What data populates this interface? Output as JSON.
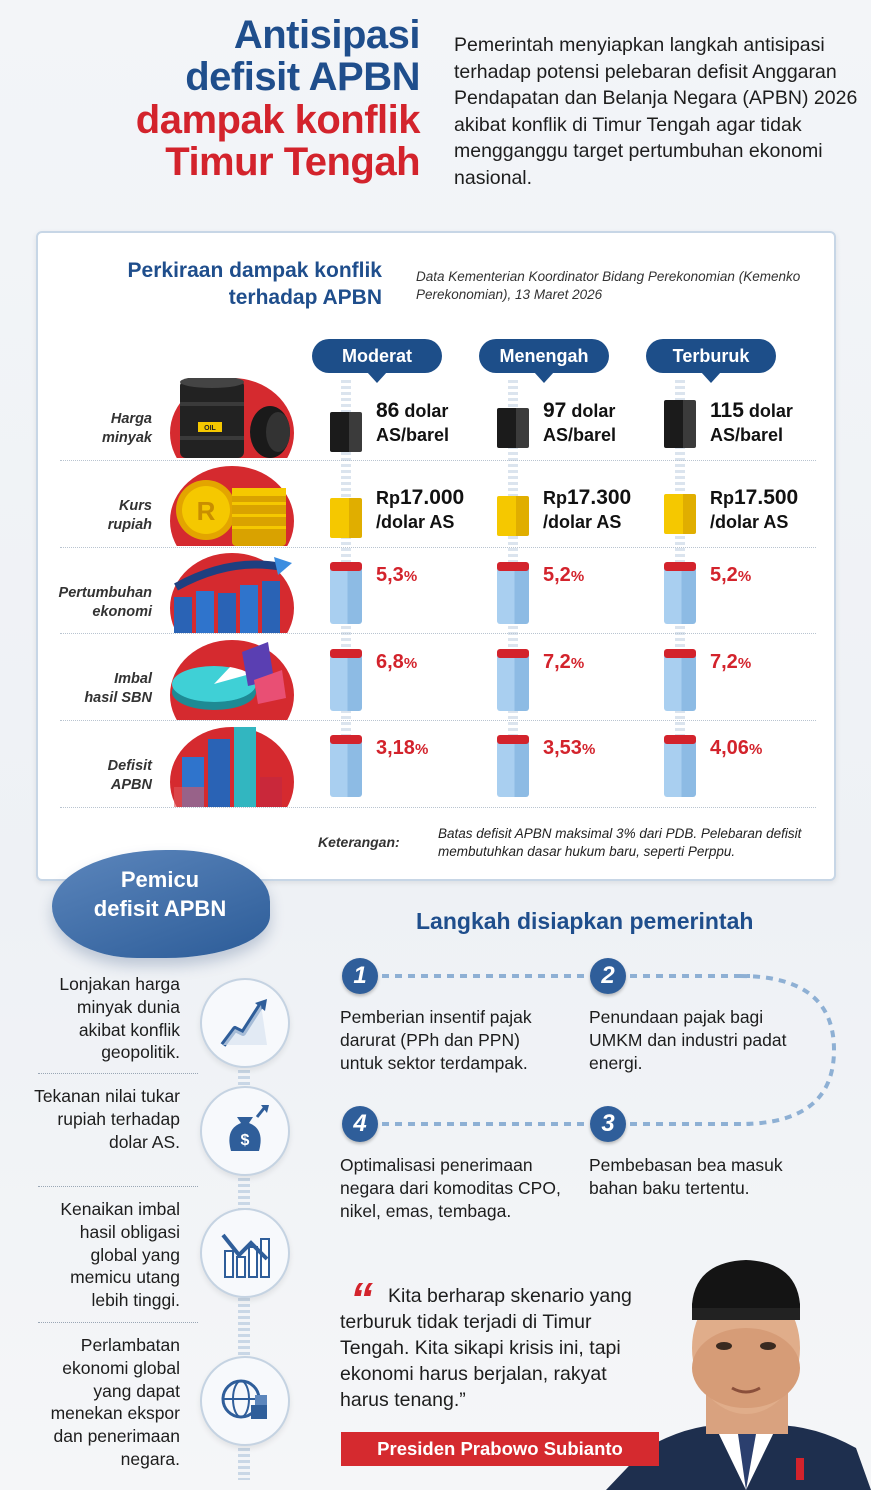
{
  "header": {
    "title_line1": "Antisipasi",
    "title_line2": "defisit APBN",
    "title_line3": "dampak konflik",
    "title_line4": "Timur Tengah",
    "description": "Pemerintah menyiapkan langkah antisipasi terhadap potensi pelebaran defisit Anggaran Pendapatan dan Belanja Negara (APBN) 2026 akibat konflik di Timur Tengah agar tidak mengganggu target pertumbuhan ekonomi nasional."
  },
  "impact": {
    "title": "Perkiraan dampak konflik terhadap APBN",
    "source": "Data Kementerian Koordinator Bidang Perekonomian (Kemenko Perekonomian), 13 Maret 2026",
    "scenarios": [
      "Moderat",
      "Menengah",
      "Terburuk"
    ],
    "rows": [
      {
        "label_l1": "Harga",
        "label_l2": "minyak",
        "icon": "oil-barrel-icon",
        "values": [
          {
            "num": "86",
            "unit1": " dolar",
            "unit2": "AS/barel"
          },
          {
            "num": "97",
            "unit1": " dolar",
            "unit2": "AS/barel"
          },
          {
            "num": "115",
            "unit1": " dolar",
            "unit2": "AS/barel"
          }
        ]
      },
      {
        "label_l1": "Kurs",
        "label_l2": "rupiah",
        "icon": "coins-icon",
        "values": [
          {
            "prefix": "Rp",
            "num": "17.000",
            "unit2": "/dolar AS"
          },
          {
            "prefix": "Rp",
            "num": "17.300",
            "unit2": "/dolar AS"
          },
          {
            "prefix": "Rp",
            "num": "17.500",
            "unit2": "/dolar AS"
          }
        ]
      },
      {
        "label_l1": "Pertumbuhan",
        "label_l2": "ekonomi",
        "icon": "growth-bars-icon",
        "values": [
          {
            "num": "5,3",
            "pct": "%"
          },
          {
            "num": "5,2",
            "pct": "%"
          },
          {
            "num": "5,2",
            "pct": "%"
          }
        ]
      },
      {
        "label_l1": "Imbal",
        "label_l2": "hasil SBN",
        "icon": "pie-chart-icon",
        "values": [
          {
            "num": "6,8",
            "pct": "%"
          },
          {
            "num": "7,2",
            "pct": "%"
          },
          {
            "num": "7,2",
            "pct": "%"
          }
        ]
      },
      {
        "label_l1": "Defisit",
        "label_l2": "APBN",
        "icon": "bar-chart-icon",
        "values": [
          {
            "num": "3,18",
            "pct": "%"
          },
          {
            "num": "3,53",
            "pct": "%"
          },
          {
            "num": "4,06",
            "pct": "%"
          }
        ]
      }
    ],
    "note_label": "Keterangan:",
    "note_text": "Batas defisit APBN maksimal 3% dari PDB. Pelebaran defisit membutuhkan dasar hukum baru, seperti Perppu."
  },
  "triggers": {
    "title_l1": "Pemicu",
    "title_l2": "defisit APBN",
    "items": [
      {
        "text": "Lonjakan harga minyak dunia akibat konflik geopolitik.",
        "icon": "rising-line-icon"
      },
      {
        "text": "Tekanan nilai tukar rupiah terhadap dolar AS.",
        "icon": "money-bag-icon"
      },
      {
        "text": "Kenaikan imbal hasil obligasi global yang memicu utang lebih tinggi.",
        "icon": "bond-chart-icon"
      },
      {
        "text": "Perlambatan ekonomi global yang dapat menekan ekspor dan penerimaan negara.",
        "icon": "globe-export-icon"
      }
    ]
  },
  "steps": {
    "title": "Langkah disiapkan pemerintah",
    "items": [
      {
        "num": "1",
        "text": "Pemberian insentif pajak darurat (PPh dan PPN) untuk sektor terdampak."
      },
      {
        "num": "2",
        "text": "Penundaan pajak bagi UMKM dan industri padat energi."
      },
      {
        "num": "3",
        "text": "Pembebasan bea masuk bahan baku tertentu."
      },
      {
        "num": "4",
        "text": "Optimalisasi penerimaan negara dari komoditas CPO, nikel, emas, tembaga."
      }
    ]
  },
  "quote": {
    "mark": "“",
    "text": "Kita berharap skenario yang terburuk tidak terjadi di Timur Tengah. Kita sikapi krisis ini, tapi ekonomi harus berjalan, rakyat harus tenang.”",
    "speaker": "Presiden Prabowo Subianto"
  },
  "colors": {
    "navy": "#1f4e8c",
    "red": "#d3232c",
    "gold": "#f5c800",
    "light_blue": "#a9cff0"
  }
}
